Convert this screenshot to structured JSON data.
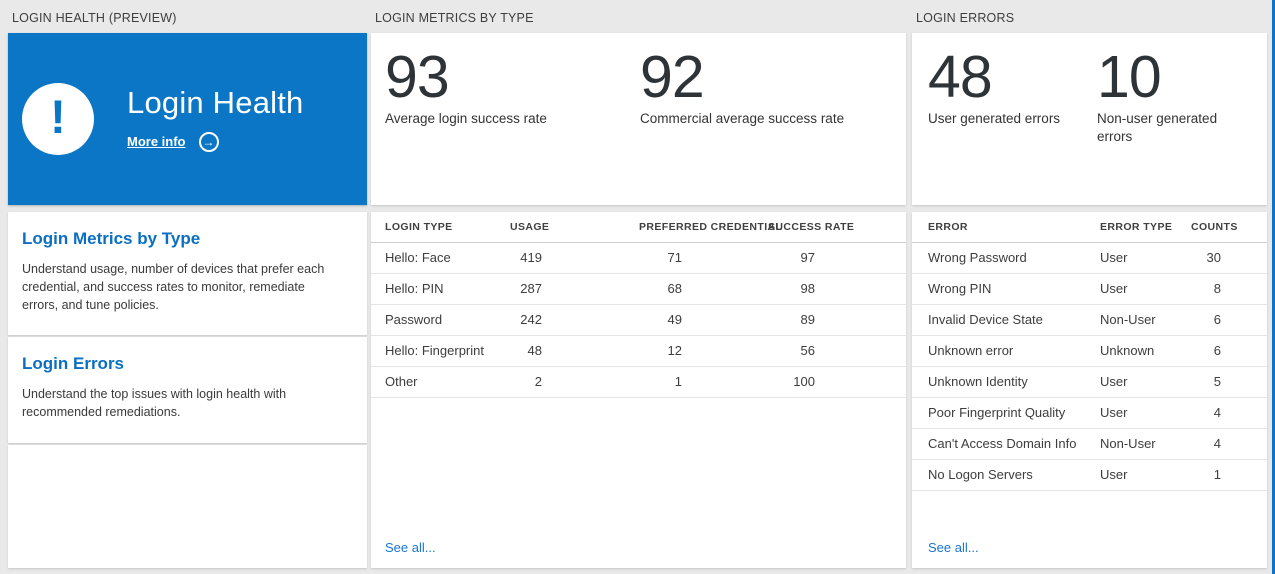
{
  "health": {
    "header": "LOGIN HEALTH (PREVIEW)",
    "tile": {
      "title": "Login Health",
      "more_info_label": "More info",
      "alert_glyph": "!",
      "arrow_glyph": "→"
    },
    "links": [
      {
        "title": "Login Metrics by Type",
        "description": "Understand usage, number of devices that prefer each credential, and success rates to monitor, remediate errors, and tune policies."
      },
      {
        "title": "Login Errors",
        "description": "Understand the top issues with login health with recommended remediations."
      }
    ]
  },
  "metrics": {
    "header": "LOGIN METRICS BY TYPE",
    "kpis": [
      {
        "value": "93",
        "label": "Average login success rate"
      },
      {
        "value": "92",
        "label": "Commercial average success rate"
      }
    ],
    "table": {
      "columns": [
        "LOGIN TYPE",
        "USAGE",
        "PREFERRED CREDENTIAL",
        "SUCCESS RATE"
      ],
      "rows": [
        [
          "Hello: Face",
          "419",
          "71",
          "97"
        ],
        [
          "Hello: PIN",
          "287",
          "68",
          "98"
        ],
        [
          "Password",
          "242",
          "49",
          "89"
        ],
        [
          "Hello: Fingerprint",
          "48",
          "12",
          "56"
        ],
        [
          "Other",
          "2",
          "1",
          "100"
        ]
      ]
    },
    "see_all": "See all..."
  },
  "errors": {
    "header": "LOGIN ERRORS",
    "kpis": [
      {
        "value": "48",
        "label": "User generated errors"
      },
      {
        "value": "10",
        "label": "Non-user generated errors"
      }
    ],
    "table": {
      "columns": [
        "ERROR",
        "ERROR TYPE",
        "COUNTS"
      ],
      "rows": [
        [
          "Wrong Password",
          "User",
          "30"
        ],
        [
          "Wrong PIN",
          "User",
          "8"
        ],
        [
          "Invalid Device State",
          "Non-User",
          "6"
        ],
        [
          "Unknown error",
          "Unknown",
          "6"
        ],
        [
          "Unknown Identity",
          "User",
          "5"
        ],
        [
          "Poor Fingerprint Quality",
          "User",
          "4"
        ],
        [
          "Can't Access Domain Info",
          "Non-User",
          "4"
        ],
        [
          "No Logon Servers",
          "User",
          "1"
        ]
      ]
    },
    "see_all": "See all..."
  },
  "colors": {
    "tile_blue": "#0b76c6",
    "link_blue": "#1a76d2",
    "title_blue": "#0a6fc2",
    "page_bg": "#e9e9e9",
    "number_ink": "#2e3338"
  }
}
